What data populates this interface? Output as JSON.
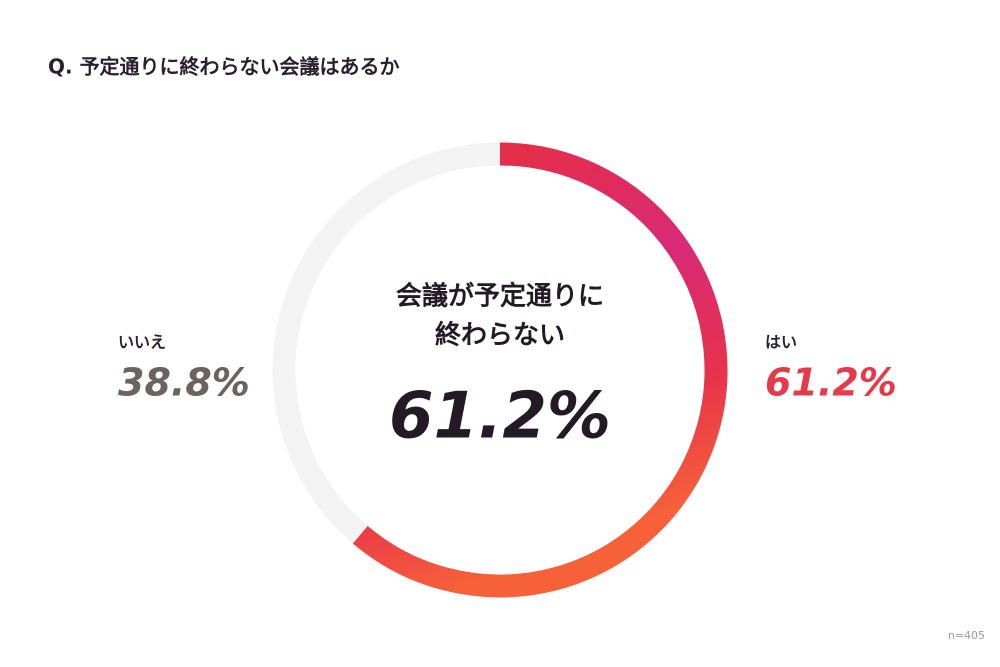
{
  "chart_data": {
    "type": "donut",
    "title": "Q. 予定通りに終わらない会議はあるか",
    "categories": [
      "はい",
      "いいえ"
    ],
    "values": [
      61.2,
      38.8
    ],
    "value_labels": [
      "61.2%",
      "38.8%"
    ],
    "colors": [
      "#e8303f",
      "#f3f3f3"
    ],
    "label_colors": [
      "#e53a49",
      "#6b6262"
    ],
    "center_text": [
      "会議が予定通りに",
      "終わらない"
    ],
    "note": "n=405"
  }
}
